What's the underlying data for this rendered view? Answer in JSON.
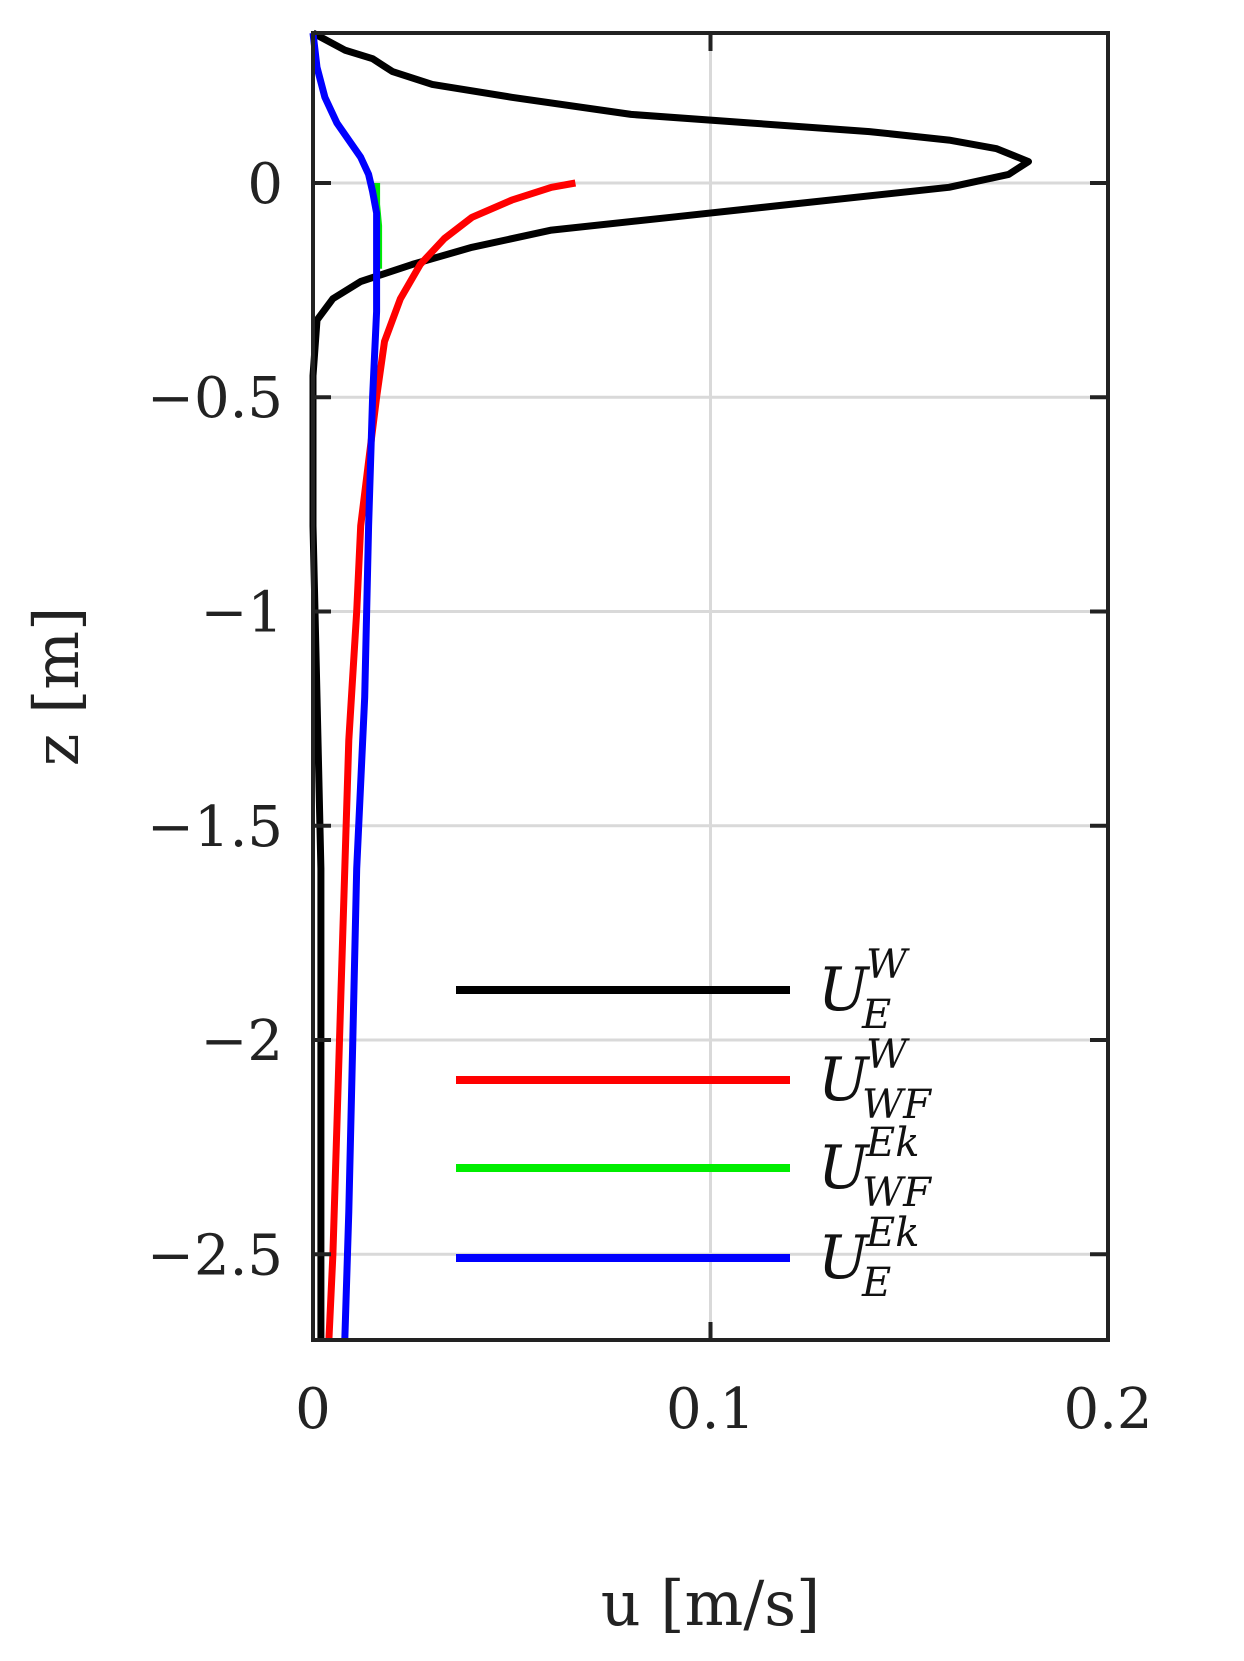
{
  "chart_data": {
    "type": "line",
    "xlabel": "u [m/s]",
    "ylabel": "z [m]",
    "xlim": [
      0,
      0.2
    ],
    "ylim": [
      -2.7,
      0.35
    ],
    "xticks": [
      0,
      0.1,
      0.2
    ],
    "xtick_labels": [
      "0",
      "0.1",
      "0.2"
    ],
    "yticks": [
      0,
      -0.5,
      -1,
      -1.5,
      -2,
      -2.5
    ],
    "ytick_labels": [
      "0",
      "−0.5",
      "−1",
      "−1.5",
      "−2",
      "−2.5"
    ],
    "grid": true,
    "legend_position": "bottom-right",
    "series": [
      {
        "name": "U_E^W",
        "label_main": "U",
        "label_sup": "W",
        "label_sub": "E",
        "color": "#000000",
        "points": [
          [
            0.0,
            0.35
          ],
          [
            0.008,
            0.31
          ],
          [
            0.015,
            0.29
          ],
          [
            0.02,
            0.26
          ],
          [
            0.03,
            0.23
          ],
          [
            0.05,
            0.2
          ],
          [
            0.08,
            0.16
          ],
          [
            0.11,
            0.14
          ],
          [
            0.14,
            0.12
          ],
          [
            0.16,
            0.1
          ],
          [
            0.172,
            0.08
          ],
          [
            0.18,
            0.05
          ],
          [
            0.175,
            0.02
          ],
          [
            0.16,
            -0.01
          ],
          [
            0.12,
            -0.05
          ],
          [
            0.09,
            -0.08
          ],
          [
            0.06,
            -0.11
          ],
          [
            0.04,
            -0.15
          ],
          [
            0.025,
            -0.19
          ],
          [
            0.012,
            -0.23
          ],
          [
            0.005,
            -0.27
          ],
          [
            0.001,
            -0.32
          ],
          [
            0.0,
            -0.45
          ],
          [
            0.0,
            -0.8
          ],
          [
            0.001,
            -1.2
          ],
          [
            0.002,
            -1.6
          ],
          [
            0.002,
            -2.0
          ],
          [
            0.002,
            -2.4
          ],
          [
            0.002,
            -2.7
          ]
        ]
      },
      {
        "name": "U_WF^W",
        "label_main": "U",
        "label_sup": "W",
        "label_sub": "WF",
        "color": "#ff0000",
        "points": [
          [
            0.066,
            0.0
          ],
          [
            0.06,
            -0.01
          ],
          [
            0.05,
            -0.04
          ],
          [
            0.04,
            -0.08
          ],
          [
            0.033,
            -0.13
          ],
          [
            0.027,
            -0.19
          ],
          [
            0.022,
            -0.27
          ],
          [
            0.018,
            -0.37
          ],
          [
            0.016,
            -0.5
          ],
          [
            0.014,
            -0.65
          ],
          [
            0.012,
            -0.8
          ],
          [
            0.011,
            -1.0
          ],
          [
            0.009,
            -1.3
          ],
          [
            0.008,
            -1.6
          ],
          [
            0.007,
            -1.9
          ],
          [
            0.006,
            -2.2
          ],
          [
            0.005,
            -2.5
          ],
          [
            0.004,
            -2.7
          ]
        ]
      },
      {
        "name": "U_WF^Ek",
        "label_main": "U",
        "label_sup": "Ek",
        "label_sub": "WF",
        "color": "#00ee00",
        "points": [
          [
            0.016,
            0.0
          ],
          [
            0.016,
            -0.05
          ],
          [
            0.0165,
            -0.1
          ],
          [
            0.0165,
            -0.2
          ]
        ]
      },
      {
        "name": "U_E^Ek",
        "label_main": "U",
        "label_sup": "Ek",
        "label_sub": "E",
        "color": "#0000ff",
        "points": [
          [
            0.0,
            0.35
          ],
          [
            0.001,
            0.27
          ],
          [
            0.003,
            0.2
          ],
          [
            0.006,
            0.14
          ],
          [
            0.009,
            0.1
          ],
          [
            0.012,
            0.06
          ],
          [
            0.014,
            0.02
          ],
          [
            0.015,
            -0.02
          ],
          [
            0.016,
            -0.07
          ],
          [
            0.016,
            -0.15
          ],
          [
            0.016,
            -0.3
          ],
          [
            0.015,
            -0.5
          ],
          [
            0.014,
            -0.8
          ],
          [
            0.013,
            -1.2
          ],
          [
            0.011,
            -1.6
          ],
          [
            0.01,
            -2.0
          ],
          [
            0.009,
            -2.4
          ],
          [
            0.008,
            -2.7
          ]
        ]
      }
    ]
  }
}
